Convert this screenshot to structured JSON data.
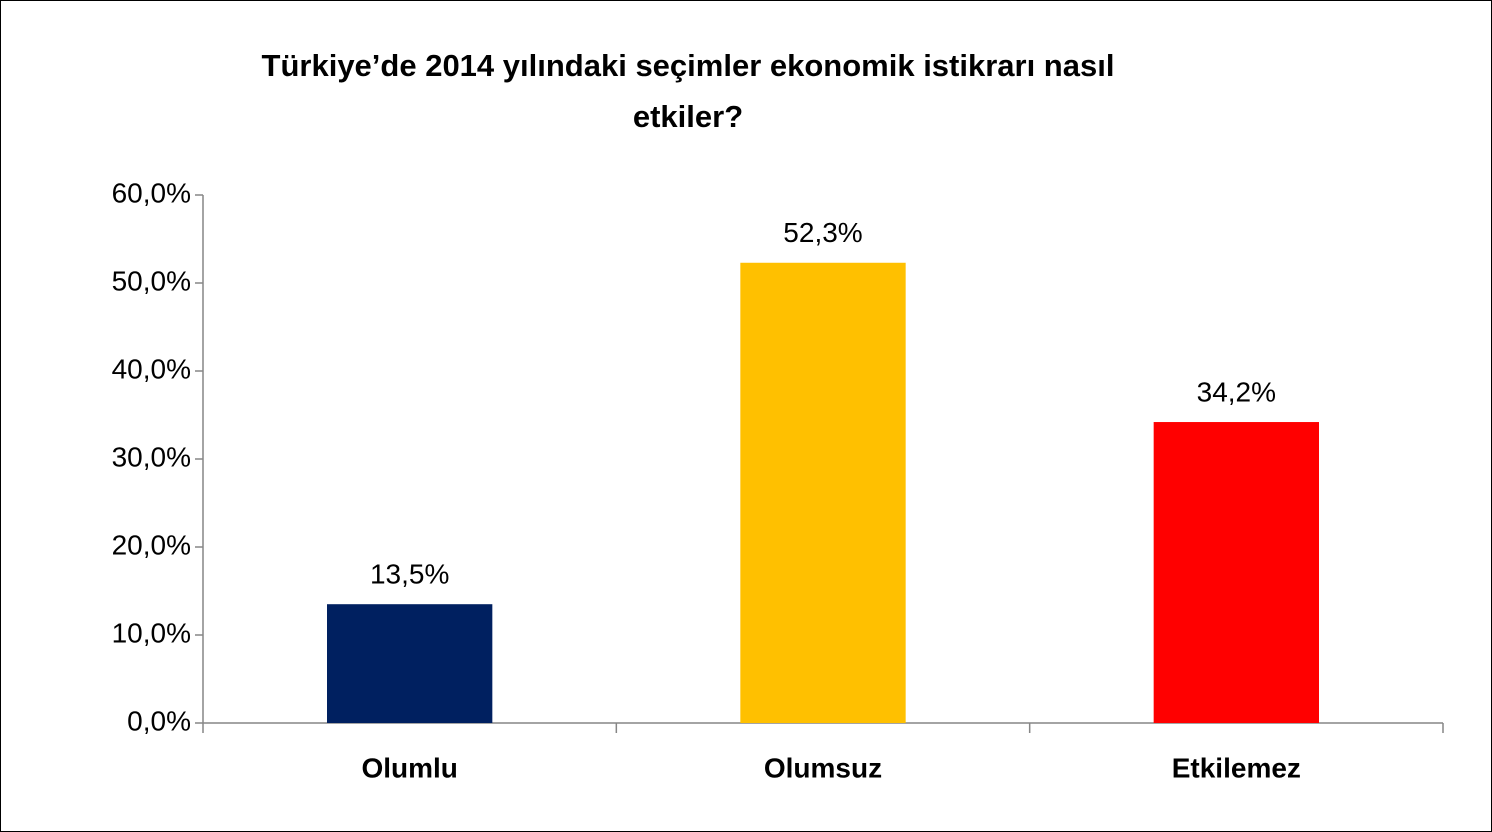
{
  "chart_data": {
    "type": "bar",
    "title": "Türkiye’de 2014 yılındaki seçimler ekonomik istikrarı nasıl etkiler?",
    "categories": [
      "Olumlu",
      "Olumsuz",
      "Etkilemez"
    ],
    "values": [
      13.5,
      52.3,
      34.2
    ],
    "value_labels": [
      "13,5%",
      "52,3%",
      "34,2%"
    ],
    "colors": [
      "#002060",
      "#ffc000",
      "#ff0000"
    ],
    "ylim": [
      0,
      60
    ],
    "yticks": [
      {
        "value": 0,
        "label": "0,0%"
      },
      {
        "value": 10,
        "label": "10,0%"
      },
      {
        "value": 20,
        "label": "20,0%"
      },
      {
        "value": 30,
        "label": "30,0%"
      },
      {
        "value": 40,
        "label": "40,0%"
      },
      {
        "value": 50,
        "label": "50,0%"
      },
      {
        "value": 60,
        "label": "60,0%"
      }
    ],
    "grid": false
  }
}
